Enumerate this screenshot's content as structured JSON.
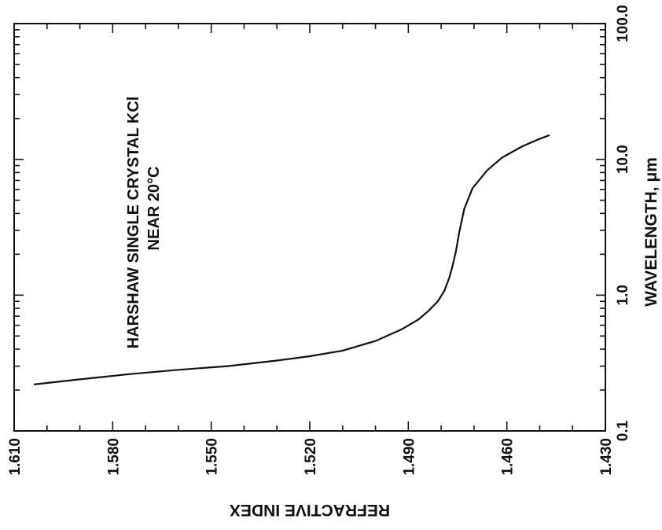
{
  "chart_data": {
    "type": "line",
    "title": "",
    "annotation_lines": [
      "HARSHAW SINGLE CRYSTAL KCl",
      "NEAR 20°C"
    ],
    "xlabel": "REFRACTIVE INDEX",
    "ylabel": "WAVELENGTH, μm",
    "xlim": [
      1.61,
      1.43
    ],
    "ylim": [
      0.1,
      100.0
    ],
    "y_scale": "log",
    "x_ticks": [
      "1.610",
      "1.580",
      "1.550",
      "1.520",
      "1.490",
      "1.460",
      "1.430"
    ],
    "y_ticks": [
      "0.1",
      "1.0",
      "10.0",
      "100.0"
    ],
    "grid": false,
    "orientation": "rotated-90",
    "series": [
      {
        "x": [
          1.604,
          1.59,
          1.575,
          1.56,
          1.545,
          1.53,
          1.52,
          1.51,
          1.5,
          1.492,
          1.487,
          1.484,
          1.481,
          1.479,
          1.4775,
          1.4765,
          1.4755,
          1.4745,
          1.473,
          1.4705,
          1.466,
          1.4615,
          1.4555,
          1.4505,
          1.447
        ],
        "y": [
          0.22,
          0.24,
          0.262,
          0.282,
          0.3,
          0.33,
          0.355,
          0.39,
          0.46,
          0.56,
          0.66,
          0.76,
          0.9,
          1.08,
          1.35,
          1.65,
          2.1,
          2.9,
          4.3,
          6.1,
          8.3,
          10.3,
          12.4,
          14.0,
          15.1
        ]
      }
    ]
  }
}
